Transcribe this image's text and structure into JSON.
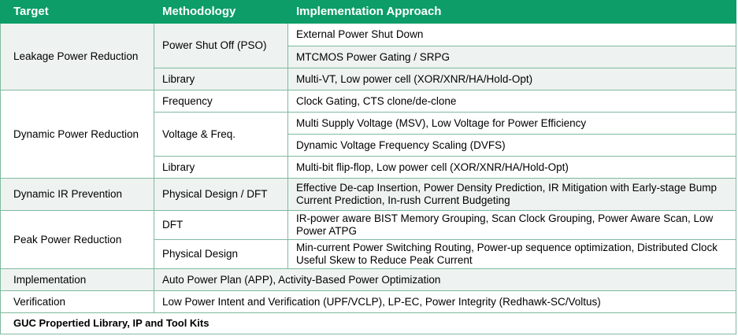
{
  "headers": [
    "Target",
    "Methodology",
    "Implementation Approach"
  ],
  "leakage": {
    "target": "Leakage Power Reduction",
    "pso": "Power Shut Off (PSO)",
    "pso_a1": "External Power Shut Down",
    "pso_a2": "MTCMOS Power Gating / SRPG",
    "lib": "Library",
    "lib_a": "Multi-VT, Low power cell (XOR/XNR/HA/Hold-Opt)"
  },
  "dynamic": {
    "target": "Dynamic Power Reduction",
    "freq": "Frequency",
    "freq_a": "Clock Gating, CTS clone/de-clone",
    "vf": "Voltage & Freq.",
    "vf_a1": "Multi Supply Voltage (MSV), Low Voltage for Power Efficiency",
    "vf_a2": "Dynamic Voltage Frequency Scaling (DVFS)",
    "lib": "Library",
    "lib_a": "Multi-bit flip-flop, Low power cell (XOR/XNR/HA/Hold-Opt)"
  },
  "ir": {
    "target": "Dynamic IR Prevention",
    "method": "Physical Design / DFT",
    "approach": "Effective De-cap Insertion, Power Density Prediction, IR Mitigation with Early-stage Bump Current Prediction, In-rush Current Budgeting"
  },
  "peak": {
    "target": "Peak Power Reduction",
    "dft": "DFT",
    "dft_a": "IR-power aware BIST Memory Grouping, Scan Clock Grouping, Power Aware Scan, Low Power ATPG",
    "pd": "Physical Design",
    "pd_a": "Min-current Power Switching Routing, Power-up sequence optimization, Distributed Clock Useful Skew to Reduce Peak Current"
  },
  "implementation": {
    "target": "Implementation",
    "approach": "Auto Power Plan (APP), Activity-Based Power Optimization"
  },
  "verification": {
    "target": "Verification",
    "approach": "Low Power Intent and Verification (UPF/VCLP), LP-EC, Power Integrity (Redhawk-SC/Voltus)"
  },
  "footer": "GUC Propertied Library, IP and Tool Kits"
}
